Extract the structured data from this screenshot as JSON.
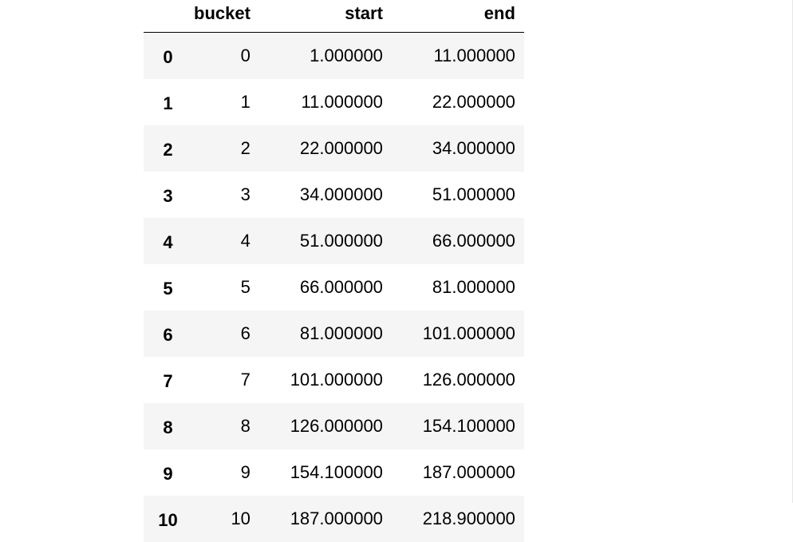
{
  "table": {
    "columns": [
      "",
      "bucket",
      "start",
      "end"
    ],
    "rows": [
      {
        "index": "0",
        "bucket": "0",
        "start": "1.000000",
        "end": "11.000000"
      },
      {
        "index": "1",
        "bucket": "1",
        "start": "11.000000",
        "end": "22.000000"
      },
      {
        "index": "2",
        "bucket": "2",
        "start": "22.000000",
        "end": "34.000000"
      },
      {
        "index": "3",
        "bucket": "3",
        "start": "34.000000",
        "end": "51.000000"
      },
      {
        "index": "4",
        "bucket": "4",
        "start": "51.000000",
        "end": "66.000000"
      },
      {
        "index": "5",
        "bucket": "5",
        "start": "66.000000",
        "end": "81.000000"
      },
      {
        "index": "6",
        "bucket": "6",
        "start": "81.000000",
        "end": "101.000000"
      },
      {
        "index": "7",
        "bucket": "7",
        "start": "101.000000",
        "end": "126.000000"
      },
      {
        "index": "8",
        "bucket": "8",
        "start": "126.000000",
        "end": "154.100000"
      },
      {
        "index": "9",
        "bucket": "9",
        "start": "154.100000",
        "end": "187.000000"
      },
      {
        "index": "10",
        "bucket": "10",
        "start": "187.000000",
        "end": "218.900000"
      }
    ]
  }
}
